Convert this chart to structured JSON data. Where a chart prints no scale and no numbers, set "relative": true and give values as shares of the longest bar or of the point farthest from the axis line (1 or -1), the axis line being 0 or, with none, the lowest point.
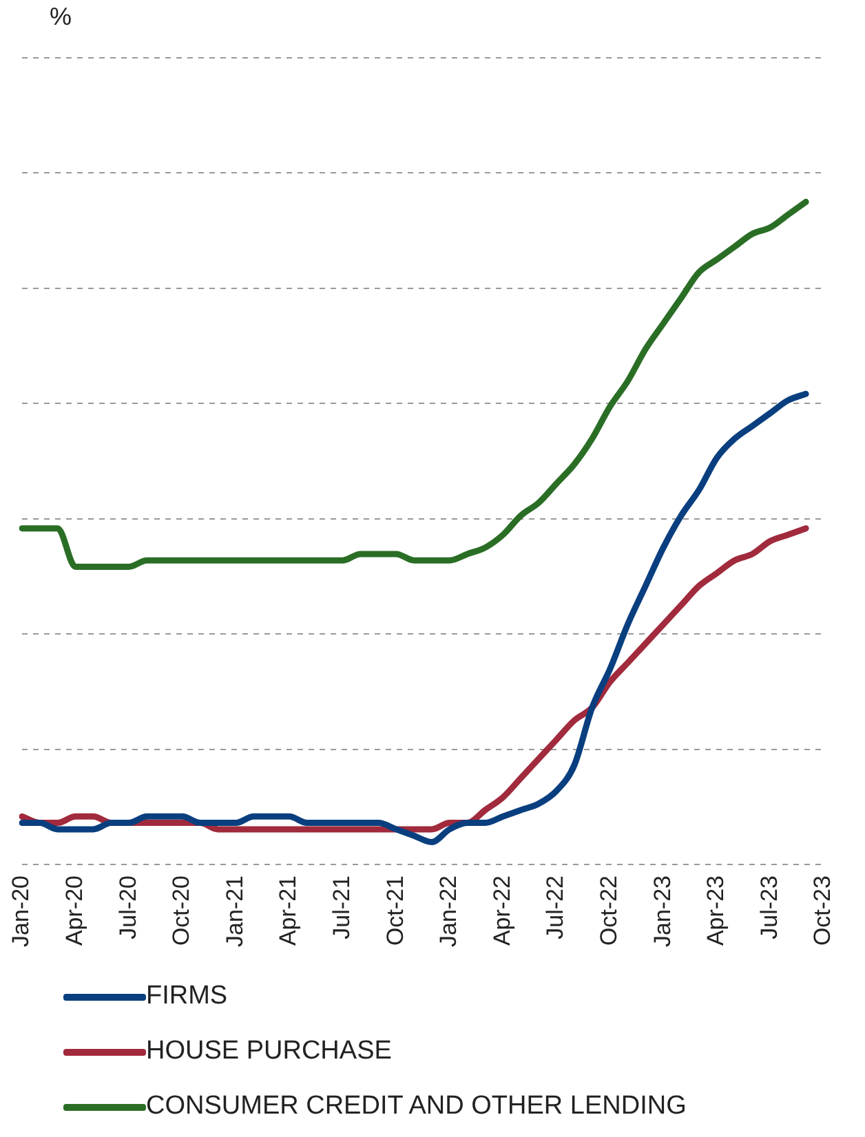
{
  "chart_data": {
    "type": "line",
    "annotations": [
      "%"
    ],
    "relative": true,
    "grid": "y",
    "legend": "bottom",
    "line_style": "solid",
    "marker": "none",
    "categories": [
      "Jan-20",
      null,
      null,
      "Apr-20",
      null,
      null,
      "Jul-20",
      null,
      null,
      "Oct-20",
      null,
      null,
      "Jan-21",
      null,
      null,
      "Apr-21",
      null,
      null,
      "Jul-21",
      null,
      null,
      "Oct-21",
      null,
      null,
      "Jan-22",
      null,
      null,
      "Apr-22",
      null,
      null,
      "Jul-22",
      null,
      null,
      "Oct-22",
      null,
      null,
      "Jan-23",
      null,
      null,
      "Apr-23",
      null,
      null,
      "Jul-23",
      null,
      null,
      "Oct-23"
    ],
    "series": [
      {
        "name": "FIRMS",
        "color": "#0a3f7f",
        "values": [
          0.03,
          0.03,
          0.02,
          0.02,
          0.02,
          0.03,
          0.03,
          0.04,
          0.04,
          0.04,
          0.03,
          0.03,
          0.03,
          0.04,
          0.04,
          0.04,
          0.03,
          0.03,
          0.03,
          0.03,
          0.03,
          0.02,
          0.01,
          0,
          0.02,
          0.03,
          0.03,
          0.04,
          0.05,
          0.06,
          0.08,
          0.12,
          0.21,
          0.27,
          0.34,
          0.4,
          0.46,
          0.51,
          0.55,
          0.6,
          0.63,
          0.65,
          0.67,
          0.69,
          0.7,
          null
        ]
      },
      {
        "name": "HOUSE PURCHASE",
        "color": "#a12a3c",
        "values": [
          0.04,
          0.03,
          0.03,
          0.04,
          0.04,
          0.03,
          0.03,
          0.03,
          0.03,
          0.03,
          0.03,
          0.02,
          0.02,
          0.02,
          0.02,
          0.02,
          0.02,
          0.02,
          0.02,
          0.02,
          0.02,
          0.02,
          0.02,
          0.02,
          0.03,
          0.03,
          0.05,
          0.07,
          0.1,
          0.13,
          0.16,
          0.19,
          0.21,
          0.25,
          0.28,
          0.31,
          0.34,
          0.37,
          0.4,
          0.42,
          0.44,
          0.45,
          0.47,
          0.48,
          0.49,
          null
        ]
      },
      {
        "name": "CONSUMER CREDIT AND OTHER LENDING",
        "color": "#2a6e25",
        "values": [
          0.49,
          0.49,
          0.49,
          0.43,
          0.43,
          0.43,
          0.43,
          0.44,
          0.44,
          0.44,
          0.44,
          0.44,
          0.44,
          0.44,
          0.44,
          0.44,
          0.44,
          0.44,
          0.44,
          0.45,
          0.45,
          0.45,
          0.44,
          0.44,
          0.44,
          0.45,
          0.46,
          0.48,
          0.51,
          0.53,
          0.56,
          0.59,
          0.63,
          0.68,
          0.72,
          0.77,
          0.81,
          0.85,
          0.89,
          0.91,
          0.93,
          0.95,
          0.96,
          0.98,
          1,
          null
        ]
      }
    ]
  }
}
